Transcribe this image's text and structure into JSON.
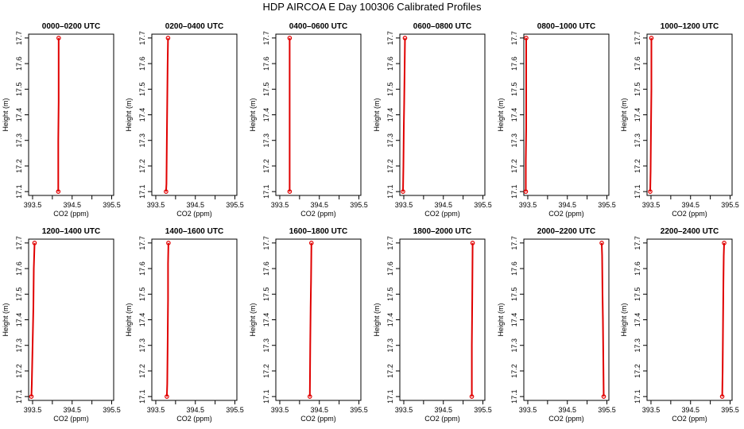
{
  "title": "HDP AIRCOA E  Day 100306  Calibrated Profiles",
  "colors": {
    "profile": "#e00000",
    "axis": "#000000"
  },
  "chart_data": [
    {
      "type": "line",
      "title": "0000–0200 UTC",
      "xlabel": "CO2 (ppm)",
      "ylabel": "Height (m)",
      "xlim": [
        393.4,
        395.55
      ],
      "ylim": [
        17.085,
        17.715
      ],
      "x_ticks": [
        "393.5",
        "394.5",
        "395.5"
      ],
      "y_ticks": [
        "17.1",
        "17.2",
        "17.3",
        "17.4",
        "17.5",
        "17.6",
        "17.7"
      ],
      "series": [
        {
          "x": [
            394.15,
            394.15,
            394.16,
            394.16,
            394.16
          ],
          "y": [
            17.1,
            17.3,
            17.45,
            17.6,
            17.7
          ]
        }
      ]
    },
    {
      "type": "line",
      "title": "0200–0400 UTC",
      "xlabel": "CO2 (ppm)",
      "ylabel": "Height (m)",
      "xlim": [
        393.4,
        395.55
      ],
      "ylim": [
        17.085,
        17.715
      ],
      "x_ticks": [
        "393.5",
        "394.5",
        "395.5"
      ],
      "y_ticks": [
        "17.1",
        "17.2",
        "17.3",
        "17.4",
        "17.5",
        "17.6",
        "17.7"
      ],
      "series": [
        {
          "x": [
            393.76,
            393.77,
            393.78,
            393.79,
            393.8,
            393.81
          ],
          "y": [
            17.1,
            17.13,
            17.3,
            17.45,
            17.6,
            17.7
          ]
        }
      ]
    },
    {
      "type": "line",
      "title": "0400–0600 UTC",
      "xlabel": "CO2 (ppm)",
      "ylabel": "Height (m)",
      "xlim": [
        393.4,
        395.55
      ],
      "ylim": [
        17.085,
        17.715
      ],
      "x_ticks": [
        "393.5",
        "394.5",
        "395.5"
      ],
      "y_ticks": [
        "17.1",
        "17.2",
        "17.3",
        "17.4",
        "17.5",
        "17.6",
        "17.7"
      ],
      "series": [
        {
          "x": [
            393.75,
            393.75,
            393.75,
            393.75
          ],
          "y": [
            17.1,
            17.3,
            17.5,
            17.7
          ]
        }
      ]
    },
    {
      "type": "line",
      "title": "0600–0800 UTC",
      "xlabel": "CO2 (ppm)",
      "ylabel": "Height (m)",
      "xlim": [
        393.4,
        395.55
      ],
      "ylim": [
        17.085,
        17.715
      ],
      "x_ticks": [
        "393.5",
        "394.5",
        "395.5"
      ],
      "y_ticks": [
        "17.1",
        "17.2",
        "17.3",
        "17.4",
        "17.5",
        "17.6",
        "17.7"
      ],
      "series": [
        {
          "x": [
            393.48,
            393.49,
            393.5,
            393.51,
            393.52,
            393.53
          ],
          "y": [
            17.1,
            17.2,
            17.35,
            17.45,
            17.57,
            17.7
          ]
        }
      ]
    },
    {
      "type": "line",
      "title": "0800–1000 UTC",
      "xlabel": "CO2 (ppm)",
      "ylabel": "Height (m)",
      "xlim": [
        393.4,
        395.55
      ],
      "ylim": [
        17.085,
        17.715
      ],
      "x_ticks": [
        "393.5",
        "394.5",
        "395.5"
      ],
      "y_ticks": [
        "17.1",
        "17.2",
        "17.3",
        "17.4",
        "17.5",
        "17.6",
        "17.7"
      ],
      "series": [
        {
          "x": [
            393.45,
            393.45,
            393.46,
            393.46,
            393.46
          ],
          "y": [
            17.1,
            17.22,
            17.35,
            17.5,
            17.7
          ]
        }
      ]
    },
    {
      "type": "line",
      "title": "1000–1200 UTC",
      "xlabel": "CO2 (ppm)",
      "ylabel": "Height (m)",
      "xlim": [
        393.4,
        395.55
      ],
      "ylim": [
        17.085,
        17.715
      ],
      "x_ticks": [
        "393.5",
        "394.5",
        "395.5"
      ],
      "y_ticks": [
        "17.1",
        "17.2",
        "17.3",
        "17.4",
        "17.5",
        "17.6",
        "17.7"
      ],
      "series": [
        {
          "x": [
            393.48,
            393.49,
            393.5,
            393.51,
            393.51
          ],
          "y": [
            17.1,
            17.18,
            17.35,
            17.5,
            17.7
          ]
        }
      ]
    },
    {
      "type": "line",
      "title": "1200–1400 UTC",
      "xlabel": "CO2 (ppm)",
      "ylabel": "Height (m)",
      "xlim": [
        393.4,
        395.55
      ],
      "ylim": [
        17.085,
        17.715
      ],
      "x_ticks": [
        "393.5",
        "394.5",
        "395.5"
      ],
      "y_ticks": [
        "17.1",
        "17.2",
        "17.3",
        "17.4",
        "17.5",
        "17.6",
        "17.7"
      ],
      "series": [
        {
          "x": [
            393.47,
            393.48,
            393.5,
            393.52,
            393.53,
            393.55
          ],
          "y": [
            17.1,
            17.15,
            17.3,
            17.45,
            17.6,
            17.7
          ]
        }
      ]
    },
    {
      "type": "line",
      "title": "1400–1600 UTC",
      "xlabel": "CO2 (ppm)",
      "ylabel": "Height (m)",
      "xlim": [
        393.4,
        395.55
      ],
      "ylim": [
        17.085,
        17.715
      ],
      "x_ticks": [
        "393.5",
        "394.5",
        "395.5"
      ],
      "y_ticks": [
        "17.1",
        "17.2",
        "17.3",
        "17.4",
        "17.5",
        "17.6",
        "17.7"
      ],
      "series": [
        {
          "x": [
            393.78,
            393.79,
            393.8,
            393.81,
            393.81,
            393.82
          ],
          "y": [
            17.1,
            17.15,
            17.3,
            17.48,
            17.62,
            17.7
          ]
        }
      ]
    },
    {
      "type": "line",
      "title": "1600–1800 UTC",
      "xlabel": "CO2 (ppm)",
      "ylabel": "Height (m)",
      "xlim": [
        393.4,
        395.55
      ],
      "ylim": [
        17.085,
        17.715
      ],
      "x_ticks": [
        "393.5",
        "394.5",
        "395.5"
      ],
      "y_ticks": [
        "17.1",
        "17.2",
        "17.3",
        "17.4",
        "17.5",
        "17.6",
        "17.7"
      ],
      "series": [
        {
          "x": [
            394.26,
            394.27,
            394.28,
            394.29,
            394.3
          ],
          "y": [
            17.1,
            17.3,
            17.45,
            17.55,
            17.7
          ]
        }
      ]
    },
    {
      "type": "line",
      "title": "1800–2000 UTC",
      "xlabel": "CO2 (ppm)",
      "ylabel": "Height (m)",
      "xlim": [
        393.4,
        395.55
      ],
      "ylim": [
        17.085,
        17.715
      ],
      "x_ticks": [
        "393.5",
        "394.5",
        "395.5"
      ],
      "y_ticks": [
        "17.1",
        "17.2",
        "17.3",
        "17.4",
        "17.5",
        "17.6",
        "17.7"
      ],
      "series": [
        {
          "x": [
            395.22,
            395.22,
            395.23,
            395.24
          ],
          "y": [
            17.1,
            17.3,
            17.48,
            17.7
          ]
        }
      ]
    },
    {
      "type": "line",
      "title": "2000–2200 UTC",
      "xlabel": "CO2 (ppm)",
      "ylabel": "Height (m)",
      "xlim": [
        393.4,
        395.55
      ],
      "ylim": [
        17.085,
        17.715
      ],
      "x_ticks": [
        "393.5",
        "394.5",
        "395.5"
      ],
      "y_ticks": [
        "17.1",
        "17.2",
        "17.3",
        "17.4",
        "17.5",
        "17.6",
        "17.7"
      ],
      "series": [
        {
          "x": [
            395.42,
            395.41,
            395.4,
            395.39,
            395.38,
            395.37
          ],
          "y": [
            17.1,
            17.25,
            17.4,
            17.5,
            17.65,
            17.7
          ]
        }
      ]
    },
    {
      "type": "line",
      "title": "2200–2400 UTC",
      "xlabel": "CO2 (ppm)",
      "ylabel": "Height (m)",
      "xlim": [
        393.4,
        395.55
      ],
      "ylim": [
        17.085,
        17.715
      ],
      "x_ticks": [
        "393.5",
        "394.5",
        "395.5"
      ],
      "y_ticks": [
        "17.1",
        "17.2",
        "17.3",
        "17.4",
        "17.5",
        "17.6",
        "17.7"
      ],
      "series": [
        {
          "x": [
            395.3,
            395.31,
            395.32,
            395.33,
            395.34,
            395.35
          ],
          "y": [
            17.1,
            17.2,
            17.38,
            17.55,
            17.65,
            17.7
          ]
        }
      ]
    }
  ]
}
